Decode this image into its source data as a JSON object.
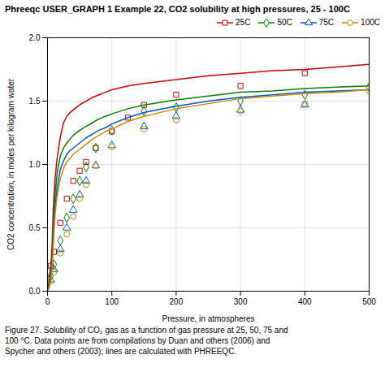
{
  "chart_data": {
    "type": "line",
    "title": "Phreeqc USER_GRAPH 1 Example 22, CO2 solubility at high pressures, 25 - 100C",
    "xlabel": "Pressure, in atmospheres",
    "ylabel": "CO2 concentration, in moles per kilogram water",
    "caption": "Figure 27. Solubility of CO₂ gas as a function of gas pressure at 25, 50, 75 and\n100 °C. Data points are from compilations by Duan and others (2006) and\nSpycher and others (2003); lines are calculated with PHREEQC.",
    "xlim": [
      0,
      500
    ],
    "ylim": [
      0.0,
      2.0
    ],
    "xticks": [
      0,
      100,
      200,
      300,
      400,
      500
    ],
    "yticks": [
      0.0,
      0.5,
      1.0,
      1.5,
      2.0
    ],
    "grid": true,
    "legend": "upper right",
    "series": [
      {
        "name": "25C",
        "color": "#cc0000",
        "marker": "square",
        "line": {
          "x": [
            0,
            1,
            2,
            3,
            4,
            5,
            6,
            7,
            8,
            9,
            10,
            12,
            15,
            20,
            25,
            30,
            35,
            40,
            50,
            60,
            70,
            80,
            90,
            100,
            125,
            150,
            200,
            250,
            300,
            350,
            400,
            450,
            500
          ],
          "values": [
            0.0,
            0.04,
            0.08,
            0.12,
            0.16,
            0.2,
            0.26,
            0.35,
            0.5,
            0.65,
            0.75,
            0.9,
            1.05,
            1.22,
            1.33,
            1.38,
            1.41,
            1.43,
            1.47,
            1.5,
            1.53,
            1.55,
            1.57,
            1.59,
            1.62,
            1.64,
            1.67,
            1.7,
            1.72,
            1.74,
            1.75,
            1.77,
            1.79
          ]
        },
        "points": {
          "x": [
            5,
            10,
            20,
            30,
            40,
            50,
            60,
            75,
            100,
            125,
            150,
            200,
            300,
            400
          ],
          "values": [
            0.2,
            0.31,
            0.54,
            0.73,
            0.87,
            0.95,
            1.02,
            1.13,
            1.26,
            1.37,
            1.47,
            1.55,
            1.62,
            1.72
          ]
        }
      },
      {
        "name": "50C",
        "color": "#008000",
        "marker": "diamond",
        "line": {
          "x": [
            0,
            1,
            2,
            3,
            4,
            5,
            6,
            7,
            8,
            9,
            10,
            12,
            15,
            20,
            25,
            30,
            35,
            40,
            50,
            60,
            70,
            80,
            90,
            100,
            125,
            150,
            200,
            250,
            300,
            350,
            400,
            450,
            500
          ],
          "values": [
            0.0,
            0.02,
            0.04,
            0.06,
            0.09,
            0.12,
            0.17,
            0.24,
            0.36,
            0.5,
            0.62,
            0.78,
            0.93,
            1.07,
            1.13,
            1.17,
            1.2,
            1.23,
            1.27,
            1.3,
            1.33,
            1.36,
            1.38,
            1.4,
            1.44,
            1.47,
            1.51,
            1.54,
            1.57,
            1.58,
            1.6,
            1.61,
            1.62
          ]
        },
        "points": {
          "x": [
            5,
            10,
            20,
            30,
            40,
            50,
            60,
            75,
            100,
            150,
            200,
            300,
            400,
            500
          ],
          "values": [
            0.12,
            0.21,
            0.4,
            0.58,
            0.73,
            0.87,
            0.98,
            1.13,
            1.27,
            1.42,
            1.45,
            1.5,
            1.55,
            1.61
          ]
        }
      },
      {
        "name": "75C",
        "color": "#0055cc",
        "marker": "triangle",
        "line": {
          "x": [
            0,
            1,
            2,
            3,
            4,
            5,
            6,
            7,
            8,
            9,
            10,
            12,
            15,
            20,
            25,
            30,
            35,
            40,
            50,
            60,
            70,
            80,
            90,
            100,
            125,
            150,
            200,
            250,
            300,
            350,
            400,
            450,
            500
          ],
          "values": [
            0.0,
            0.01,
            0.03,
            0.05,
            0.07,
            0.1,
            0.14,
            0.2,
            0.3,
            0.42,
            0.53,
            0.68,
            0.82,
            0.96,
            1.03,
            1.08,
            1.11,
            1.13,
            1.17,
            1.21,
            1.24,
            1.27,
            1.29,
            1.32,
            1.37,
            1.41,
            1.46,
            1.5,
            1.53,
            1.55,
            1.57,
            1.58,
            1.59
          ]
        },
        "points": {
          "x": [
            5,
            10,
            20,
            30,
            40,
            50,
            60,
            75,
            100,
            150,
            200,
            300,
            400
          ],
          "values": [
            0.09,
            0.17,
            0.33,
            0.5,
            0.64,
            0.76,
            0.87,
            0.99,
            1.15,
            1.3,
            1.38,
            1.43,
            1.47
          ]
        }
      },
      {
        "name": "100C",
        "color": "#cc8800",
        "marker": "circle",
        "line": {
          "x": [
            0,
            1,
            2,
            3,
            4,
            5,
            6,
            7,
            8,
            9,
            10,
            12,
            15,
            20,
            25,
            30,
            35,
            40,
            50,
            60,
            70,
            80,
            90,
            100,
            125,
            150,
            200,
            250,
            300,
            350,
            400,
            450,
            500
          ],
          "values": [
            0.0,
            0.01,
            0.02,
            0.04,
            0.06,
            0.08,
            0.11,
            0.17,
            0.26,
            0.37,
            0.47,
            0.62,
            0.75,
            0.89,
            0.97,
            1.02,
            1.05,
            1.08,
            1.12,
            1.16,
            1.2,
            1.23,
            1.26,
            1.28,
            1.34,
            1.38,
            1.44,
            1.48,
            1.52,
            1.54,
            1.56,
            1.57,
            1.59
          ]
        },
        "points": {
          "x": [
            5,
            10,
            20,
            30,
            40,
            50,
            60,
            75,
            100,
            150,
            200,
            300,
            400,
            500
          ],
          "values": [
            0.08,
            0.15,
            0.3,
            0.45,
            0.59,
            0.73,
            0.84,
            0.99,
            1.14,
            1.28,
            1.35,
            1.42,
            1.48,
            1.58
          ]
        }
      }
    ]
  }
}
